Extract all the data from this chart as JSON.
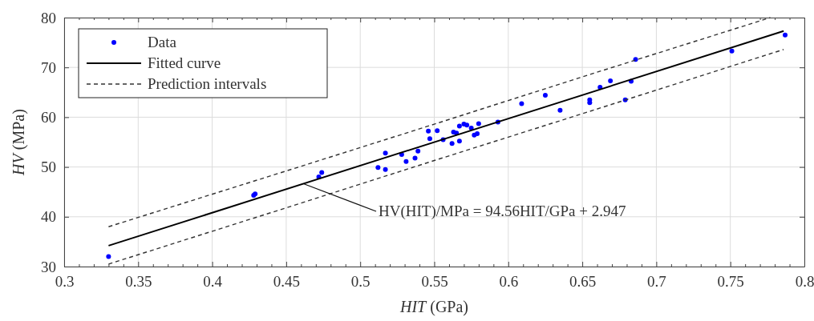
{
  "chart_data": {
    "type": "scatter",
    "xlabel": "HIT (GPa)",
    "ylabel": "HV (MPa)",
    "xlim": [
      0.3,
      0.8
    ],
    "ylim": [
      30,
      80
    ],
    "xticks": [
      0.3,
      {
        "value": 0.31,
        "label": null
      },
      {
        "value": 0.32,
        "label": null
      },
      {
        "value": 0.33,
        "label": null
      },
      {
        "value": 0.34,
        "label": null
      },
      0.35,
      {
        "value": 0.36,
        "label": null
      },
      {
        "value": 0.37,
        "label": null
      },
      {
        "value": 0.38,
        "label": null
      },
      {
        "value": 0.39,
        "label": null
      },
      0.4,
      {
        "value": 0.41,
        "label": null
      },
      {
        "value": 0.42,
        "label": null
      },
      {
        "value": 0.43,
        "label": null
      },
      {
        "value": 0.44,
        "label": null
      },
      0.45,
      {
        "value": 0.46,
        "label": null
      },
      {
        "value": 0.47,
        "label": null
      },
      {
        "value": 0.48,
        "label": null
      },
      {
        "value": 0.49,
        "label": null
      },
      0.5,
      {
        "value": 0.51,
        "label": null
      },
      {
        "value": 0.52,
        "label": null
      },
      {
        "value": 0.53,
        "label": null
      },
      {
        "value": 0.54,
        "label": null
      },
      0.55,
      {
        "value": 0.56,
        "label": null
      },
      {
        "value": 0.57,
        "label": null
      },
      {
        "value": 0.58,
        "label": null
      },
      {
        "value": 0.59,
        "label": null
      },
      0.6,
      {
        "value": 0.61,
        "label": null
      },
      {
        "value": 0.62,
        "label": null
      },
      {
        "value": 0.63,
        "label": null
      },
      {
        "value": 0.64,
        "label": null
      },
      0.65,
      {
        "value": 0.66,
        "label": null
      },
      {
        "value": 0.67,
        "label": null
      },
      {
        "value": 0.68,
        "label": null
      },
      {
        "value": 0.69,
        "label": null
      },
      0.7,
      {
        "value": 0.71,
        "label": null
      },
      {
        "value": 0.72,
        "label": null
      },
      {
        "value": 0.73,
        "label": null
      },
      {
        "value": 0.74,
        "label": null
      },
      0.75,
      {
        "value": 0.76,
        "label": null
      },
      {
        "value": 0.77,
        "label": null
      },
      {
        "value": 0.78,
        "label": null
      },
      {
        "value": 0.79,
        "label": null
      },
      0.8
    ],
    "yticks": [
      30,
      40,
      50,
      60,
      70,
      80
    ],
    "grid": true,
    "legend": "top left",
    "annotations": [
      {
        "text": "HV(HIT)/MPa = 94.56HIT/GPa + 2.947",
        "x": 0.462,
        "y": 46.6
      }
    ],
    "series": [
      {
        "name": "Data",
        "color": "#0000ff",
        "marker": "circle",
        "x": [
          0.33,
          0.428,
          0.429,
          0.472,
          0.474,
          0.512,
          0.517,
          0.517,
          0.528,
          0.531,
          0.537,
          0.539,
          0.546,
          0.547,
          0.552,
          0.556,
          0.562,
          0.563,
          0.565,
          0.567,
          0.567,
          0.57,
          0.572,
          0.575,
          0.577,
          0.579,
          0.58,
          0.593,
          0.609,
          0.625,
          0.635,
          0.655,
          0.655,
          0.662,
          0.669,
          0.679,
          0.683,
          0.686,
          0.751,
          0.787
        ],
        "values": [
          32.0,
          44.3,
          44.6,
          48.0,
          48.9,
          49.9,
          49.5,
          52.8,
          52.5,
          51.1,
          51.8,
          53.2,
          57.2,
          55.7,
          57.3,
          55.5,
          54.7,
          57.0,
          56.8,
          55.2,
          58.2,
          58.6,
          58.4,
          57.8,
          56.4,
          56.7,
          58.7,
          59.0,
          62.7,
          64.4,
          61.4,
          62.9,
          63.5,
          66.0,
          67.3,
          63.5,
          67.2,
          71.6,
          73.3,
          76.5
        ]
      },
      {
        "name": "Fitted curve",
        "type": "line",
        "color": "#000000",
        "line_style": "solid",
        "x": [
          0.33,
          0.786
        ],
        "values": [
          34.2,
          77.3
        ]
      },
      {
        "name": "Prediction intervals",
        "type": "line",
        "color": "#333333",
        "line_style": "dashed",
        "x": [
          0.33,
          0.45,
          0.55,
          0.65,
          0.777
        ],
        "values": [
          38.0,
          49.2,
          58.6,
          68.1,
          80.0
        ]
      },
      {
        "type": "line",
        "color": "#333333",
        "line_style": "dashed",
        "x": [
          0.33,
          0.45,
          0.55,
          0.65,
          0.786
        ],
        "values": [
          30.5,
          41.8,
          51.3,
          60.7,
          73.6
        ]
      }
    ]
  }
}
